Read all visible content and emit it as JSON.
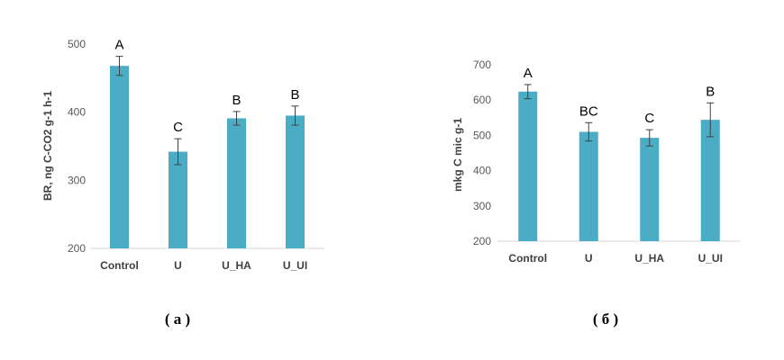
{
  "chart_data": [
    {
      "type": "bar",
      "caption": "( а )",
      "categories": [
        "Control",
        "U",
        "U_HA",
        "U_UI"
      ],
      "values": [
        468,
        342,
        391,
        395
      ],
      "errors": [
        14,
        19,
        10,
        14
      ],
      "significance_letters": [
        "A",
        "C",
        "B",
        "B"
      ],
      "ylabel": "BR, ng C-CO2 g-1 h-1",
      "ylim": [
        200,
        500
      ],
      "yticks": [
        200,
        300,
        400,
        500
      ],
      "grid": false,
      "bar_color": "#4BACC6"
    },
    {
      "type": "bar",
      "caption": "( б )",
      "categories": [
        "Control",
        "U",
        "U_HA",
        "U_UI"
      ],
      "values": [
        624,
        510,
        493,
        544
      ],
      "errors": [
        20,
        26,
        23,
        48
      ],
      "significance_letters": [
        "A",
        "BC",
        "C",
        "B"
      ],
      "ylabel": "mkg C mic g-1",
      "ylim": [
        200,
        700
      ],
      "yticks": [
        200,
        300,
        400,
        500,
        600,
        700
      ],
      "grid": false,
      "bar_color": "#4BACC6"
    }
  ]
}
